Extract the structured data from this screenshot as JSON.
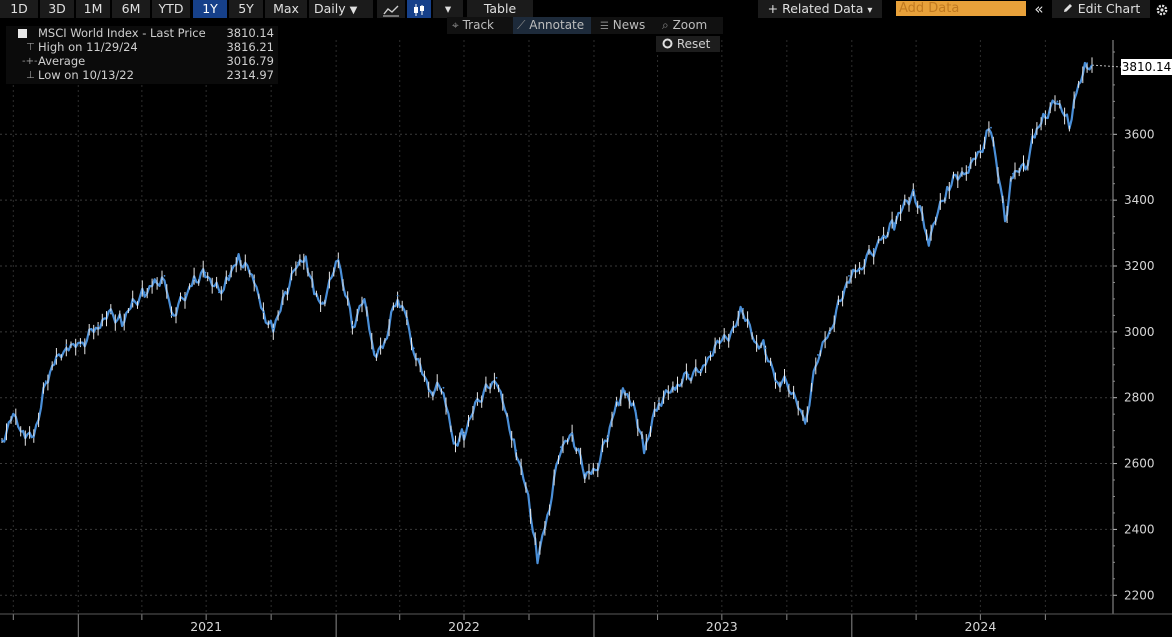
{
  "toolbar": {
    "ranges": [
      "1D",
      "3D",
      "1M",
      "6M",
      "YTD",
      "1Y",
      "5Y",
      "Max"
    ],
    "active_range": "1Y",
    "frequency": "Daily",
    "frequency_arrow": "▼",
    "line_icon": "line-chart-icon",
    "candle_icon": "candlestick-icon",
    "dropdown_arrow": "▾",
    "table_label": "Table",
    "related_data_label": "Related Data",
    "related_plus": "+",
    "related_arrow": "▾",
    "add_data_placeholder": "Add Data",
    "collapse_label": "«",
    "edit_chart_label": "Edit Chart",
    "edit_icon": "pencil-icon",
    "settings_icon": "gear-icon"
  },
  "subbar": {
    "track_label": "Track",
    "annotate_label": "Annotate",
    "news_label": "News",
    "zoom_label": "Zoom",
    "reset_label": "Reset"
  },
  "legend": {
    "rows": [
      {
        "label": "MSCI World Index - Last Price",
        "value": "3810.14",
        "icon": "series-swatch-icon"
      },
      {
        "label": "High on 11/29/24",
        "value": "3816.21",
        "icon": "high-marker-icon"
      },
      {
        "label": "Average",
        "value": "3016.79",
        "icon": "average-line-icon"
      },
      {
        "label": "Low on 10/13/22",
        "value": "2314.97",
        "icon": "low-marker-icon"
      }
    ]
  },
  "chart_data": {
    "type": "line",
    "title": "MSCI World Index - Last Price",
    "xlabel": "",
    "ylabel": "",
    "x_ticks": [
      "2021",
      "2022",
      "2023",
      "2024"
    ],
    "y_ticks": [
      2200,
      2400,
      2600,
      2800,
      3000,
      3200,
      3400,
      3600
    ],
    "ylim": [
      2200,
      3900
    ],
    "grid": true,
    "last_price_label": "3810.14",
    "series": [
      {
        "name": "MSCI World Index - Last Price",
        "color": "#4a8fd8",
        "x": [
          "2020-09-15",
          "2020-10-01",
          "2020-10-15",
          "2020-10-30",
          "2020-11-16",
          "2020-12-01",
          "2020-12-15",
          "2021-01-04",
          "2021-01-29",
          "2021-02-16",
          "2021-03-04",
          "2021-03-19",
          "2021-04-05",
          "2021-04-19",
          "2021-05-03",
          "2021-05-13",
          "2021-06-01",
          "2021-06-14",
          "2021-06-30",
          "2021-07-19",
          "2021-08-02",
          "2021-08-16",
          "2021-09-07",
          "2021-09-20",
          "2021-10-04",
          "2021-10-21",
          "2021-11-08",
          "2021-11-19",
          "2021-12-01",
          "2021-12-13",
          "2022-01-04",
          "2022-01-24",
          "2022-02-10",
          "2022-02-24",
          "2022-03-08",
          "2022-03-29",
          "2022-04-11",
          "2022-04-21",
          "2022-05-12",
          "2022-06-02",
          "2022-06-16",
          "2022-07-01",
          "2022-07-20",
          "2022-08-16",
          "2022-08-31",
          "2022-09-13",
          "2022-09-30",
          "2022-10-13",
          "2022-10-27",
          "2022-11-15",
          "2022-12-01",
          "2022-12-19",
          "2023-01-03",
          "2023-01-20",
          "2023-02-02",
          "2023-02-14",
          "2023-03-01",
          "2023-03-13",
          "2023-04-03",
          "2023-04-26",
          "2023-05-15",
          "2023-06-01",
          "2023-06-15",
          "2023-07-14",
          "2023-07-31",
          "2023-08-16",
          "2023-09-01",
          "2023-09-15",
          "2023-10-04",
          "2023-10-27",
          "2023-11-14",
          "2023-12-01",
          "2023-12-28",
          "2024-01-12",
          "2024-02-01",
          "2024-02-15",
          "2024-03-01",
          "2024-03-28",
          "2024-04-19",
          "2024-05-15",
          "2024-06-14",
          "2024-07-01",
          "2024-07-16",
          "2024-08-05",
          "2024-08-16",
          "2024-09-03",
          "2024-09-16",
          "2024-10-01",
          "2024-10-18",
          "2024-11-04",
          "2024-11-14",
          "2024-11-29",
          "2024-12-06"
        ],
        "values": [
          2670,
          2750,
          2700,
          2680,
          2850,
          2920,
          2960,
          2960,
          3020,
          3060,
          3030,
          3090,
          3120,
          3150,
          3170,
          3050,
          3110,
          3160,
          3180,
          3120,
          3170,
          3230,
          3160,
          3060,
          3010,
          3120,
          3210,
          3230,
          3120,
          3090,
          3220,
          3020,
          3100,
          2940,
          2950,
          3110,
          3040,
          2950,
          2820,
          2830,
          2660,
          2690,
          2790,
          2860,
          2740,
          2640,
          2500,
          2315,
          2440,
          2650,
          2690,
          2570,
          2580,
          2680,
          2790,
          2820,
          2760,
          2640,
          2790,
          2830,
          2870,
          2880,
          2940,
          3000,
          3070,
          2970,
          2950,
          2850,
          2840,
          2720,
          2930,
          3000,
          3170,
          3190,
          3250,
          3290,
          3330,
          3430,
          3280,
          3440,
          3500,
          3550,
          3620,
          3340,
          3480,
          3500,
          3600,
          3660,
          3700,
          3630,
          3730,
          3816,
          3810
        ]
      }
    ]
  }
}
